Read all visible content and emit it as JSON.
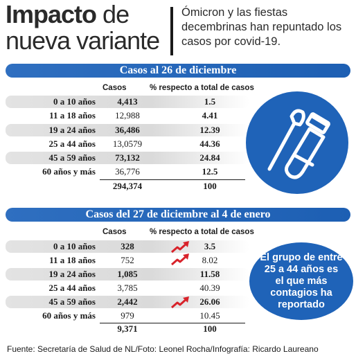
{
  "header": {
    "title_bold": "Impacto",
    "title_rest_line1": "de",
    "title_line2": "nueva variante",
    "subtitle": "Ómicron y las fiestas decembrinas han repuntado los casos por covid-19."
  },
  "table1": {
    "banner": "Casos al 26 de diciembre",
    "col_cases": "Casos",
    "col_pct": "% respecto a total de casos",
    "rows": [
      {
        "age": "0 a 10 años",
        "cases": "4,413",
        "pct": "1.5"
      },
      {
        "age": "11 a 18 años",
        "cases": "12,988",
        "pct": "4.41"
      },
      {
        "age": "19 a 24 años",
        "cases": "36,486",
        "pct": "12.39"
      },
      {
        "age": "25 a 44 años",
        "cases": "13,0579",
        "pct": "44.36"
      },
      {
        "age": "45 a 59 años",
        "cases": "73,132",
        "pct": "24.84"
      },
      {
        "age": "60 años y más",
        "cases": "36,776",
        "pct": "12.5"
      }
    ],
    "total_cases": "294,374",
    "total_pct": "100"
  },
  "table2": {
    "banner": "Casos del 27 de diciembre al 4 de enero",
    "col_cases": "Casos",
    "col_pct": "% respecto a total de casos",
    "rows": [
      {
        "age": "0 a 10 años",
        "cases": "328",
        "pct": "3.5"
      },
      {
        "age": "11 a 18 años",
        "cases": "752",
        "pct": "8.02"
      },
      {
        "age": "19 a 24 años",
        "cases": "1,085",
        "pct": "11.58"
      },
      {
        "age": "25 a 44 años",
        "cases": "3,785",
        "pct": "40.39"
      },
      {
        "age": "45 a 59 años",
        "cases": "2,442",
        "pct": "26.06"
      },
      {
        "age": "60 años y más",
        "cases": "979",
        "pct": "10.45"
      }
    ],
    "total_cases": "9,371",
    "total_pct": "100",
    "increase_icon": "red-up-arrow-icon"
  },
  "callout": "El grupo de entre 25 a 44 años es el que más contagios ha reportado",
  "illustration_icon": "swab-and-test-tube-icon",
  "footer": "Fuente: Secretaría de Salud de NL/Foto: Leonel Rocha/Infografía: Ricardo Laureano",
  "colors": {
    "brand_blue": "#1f63b8",
    "arrow_red": "#d8222a",
    "row_shade": "#dadada"
  }
}
